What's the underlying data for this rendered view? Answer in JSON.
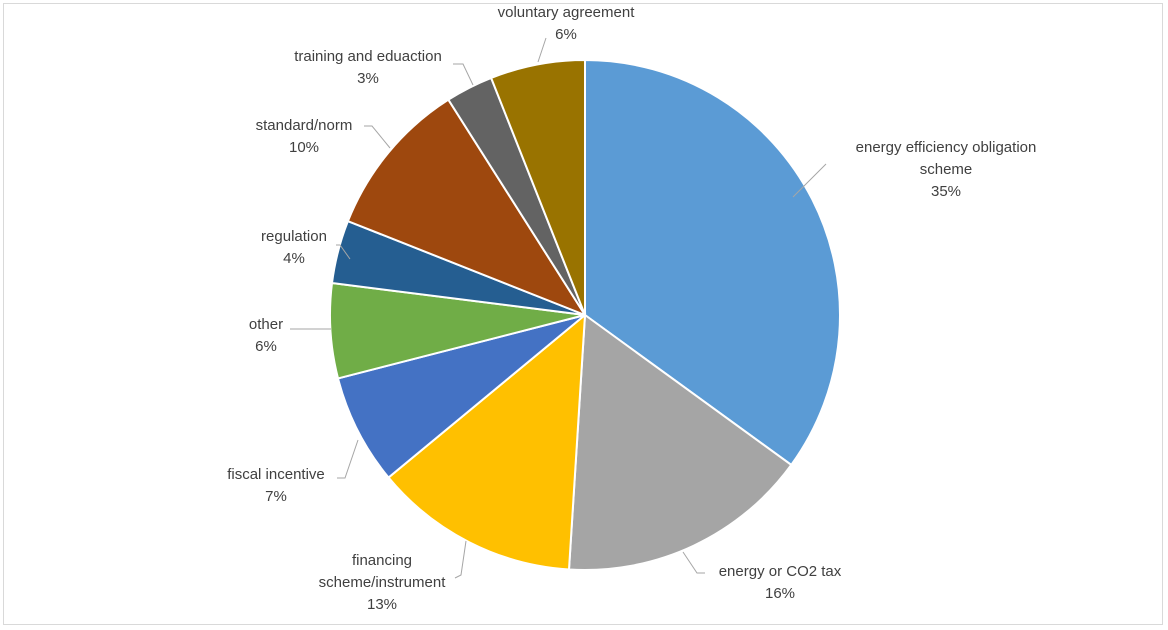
{
  "chart_data": {
    "type": "pie",
    "title": "",
    "unit": "%",
    "start_angle_deg": 0,
    "direction": "clockwise",
    "slices": [
      {
        "label_lines": [
          "energy efficiency obligation",
          "scheme"
        ],
        "value": 35,
        "value_label": "35%",
        "color": "#5b9bd5"
      },
      {
        "label_lines": [
          "energy or CO2 tax"
        ],
        "value": 16,
        "value_label": "16%",
        "color": "#a5a5a5"
      },
      {
        "label_lines": [
          "financing",
          "scheme/instrument"
        ],
        "value": 13,
        "value_label": "13%",
        "color": "#ffc000"
      },
      {
        "label_lines": [
          "fiscal incentive"
        ],
        "value": 7,
        "value_label": "7%",
        "color": "#4472c4"
      },
      {
        "label_lines": [
          "other"
        ],
        "value": 6,
        "value_label": "6%",
        "color": "#70ad47"
      },
      {
        "label_lines": [
          "regulation"
        ],
        "value": 4,
        "value_label": "4%",
        "color": "#255e91"
      },
      {
        "label_lines": [
          "standard/norm"
        ],
        "value": 10,
        "value_label": "10%",
        "color": "#9e480e"
      },
      {
        "label_lines": [
          "training and eduaction"
        ],
        "value": 3,
        "value_label": "3%",
        "color": "#636363"
      },
      {
        "label_lines": [
          "voluntary agreement"
        ],
        "value": 6,
        "value_label": "6%",
        "color": "#997300"
      }
    ]
  }
}
